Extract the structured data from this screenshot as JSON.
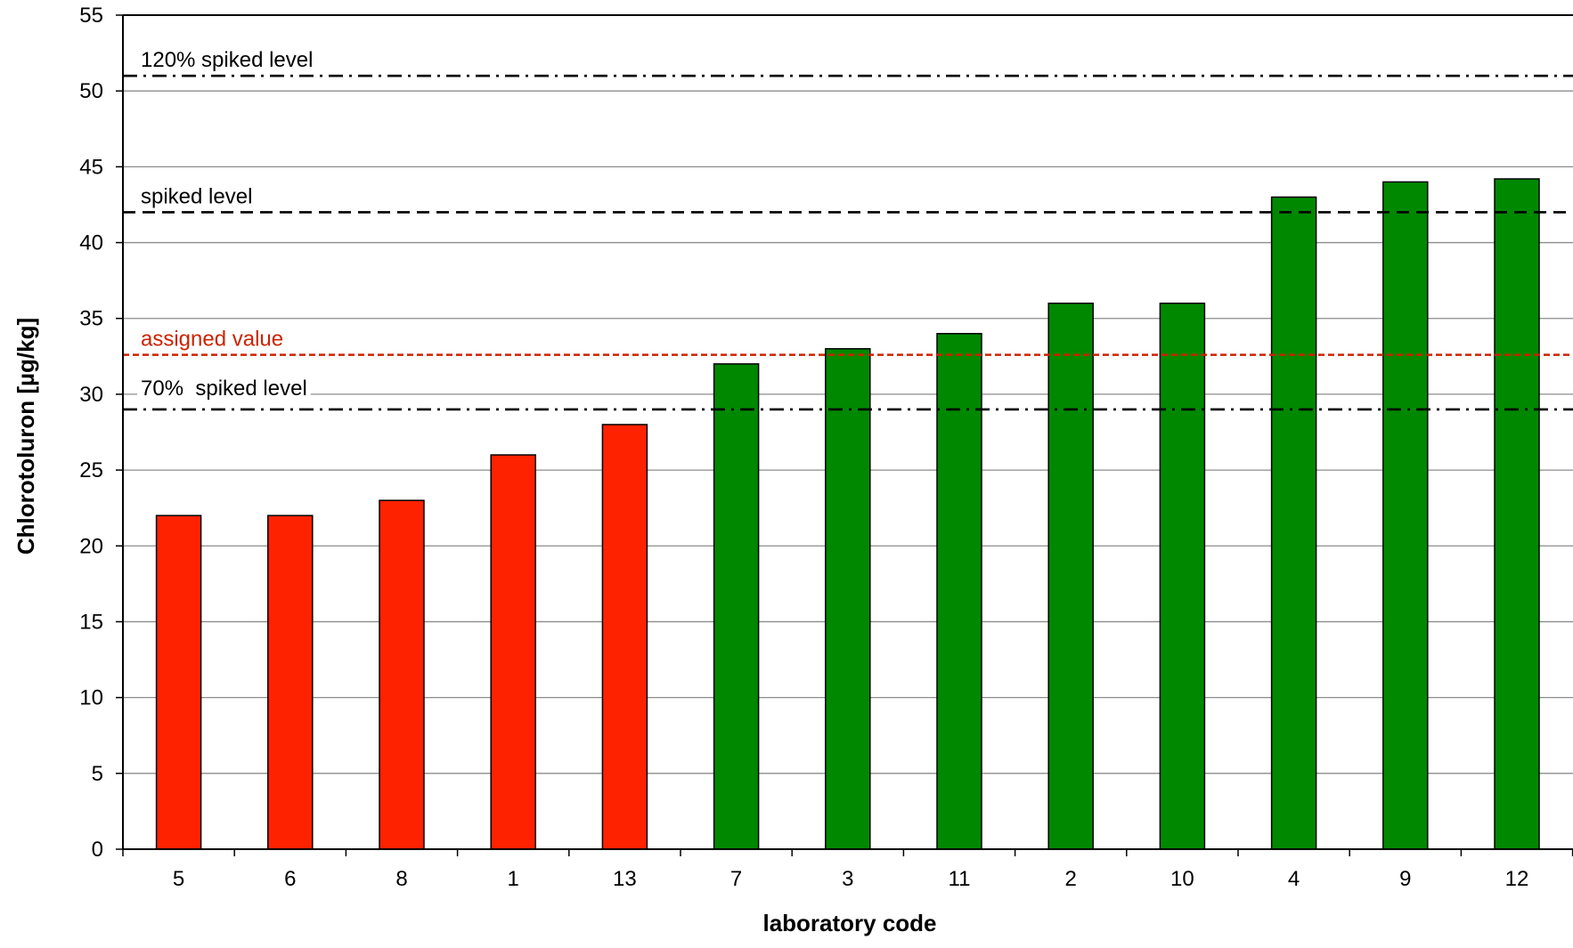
{
  "chart_data": {
    "type": "bar",
    "title": "",
    "xlabel": "laboratory code",
    "ylabel": "Chlorotoluron [µg/kg]",
    "ylim": [
      0,
      55
    ],
    "yticks": [
      0,
      5,
      10,
      15,
      20,
      25,
      30,
      35,
      40,
      45,
      50,
      55
    ],
    "grid": true,
    "categories": [
      "5",
      "6",
      "8",
      "1",
      "13",
      "7",
      "3",
      "11",
      "2",
      "10",
      "4",
      "9",
      "12"
    ],
    "values": [
      22,
      22,
      23,
      26,
      28,
      32,
      33,
      34,
      36,
      36,
      43,
      44,
      44.2
    ],
    "bar_colors": [
      "#ff2200",
      "#ff2200",
      "#ff2200",
      "#ff2200",
      "#ff2200",
      "#008800",
      "#008800",
      "#008800",
      "#008800",
      "#008800",
      "#008800",
      "#008800",
      "#008800"
    ],
    "reference_lines": [
      {
        "label": "120% spiked level",
        "value": 51,
        "style": "dash-dot",
        "color": "#000000"
      },
      {
        "label": "spiked level",
        "value": 42,
        "style": "dashed",
        "color": "#000000"
      },
      {
        "label": "assigned value",
        "value": 32.6,
        "style": "dotted",
        "color": "#cc2200"
      },
      {
        "label": "70%  spiked level",
        "value": 29,
        "style": "dash-dot",
        "color": "#000000"
      }
    ]
  }
}
